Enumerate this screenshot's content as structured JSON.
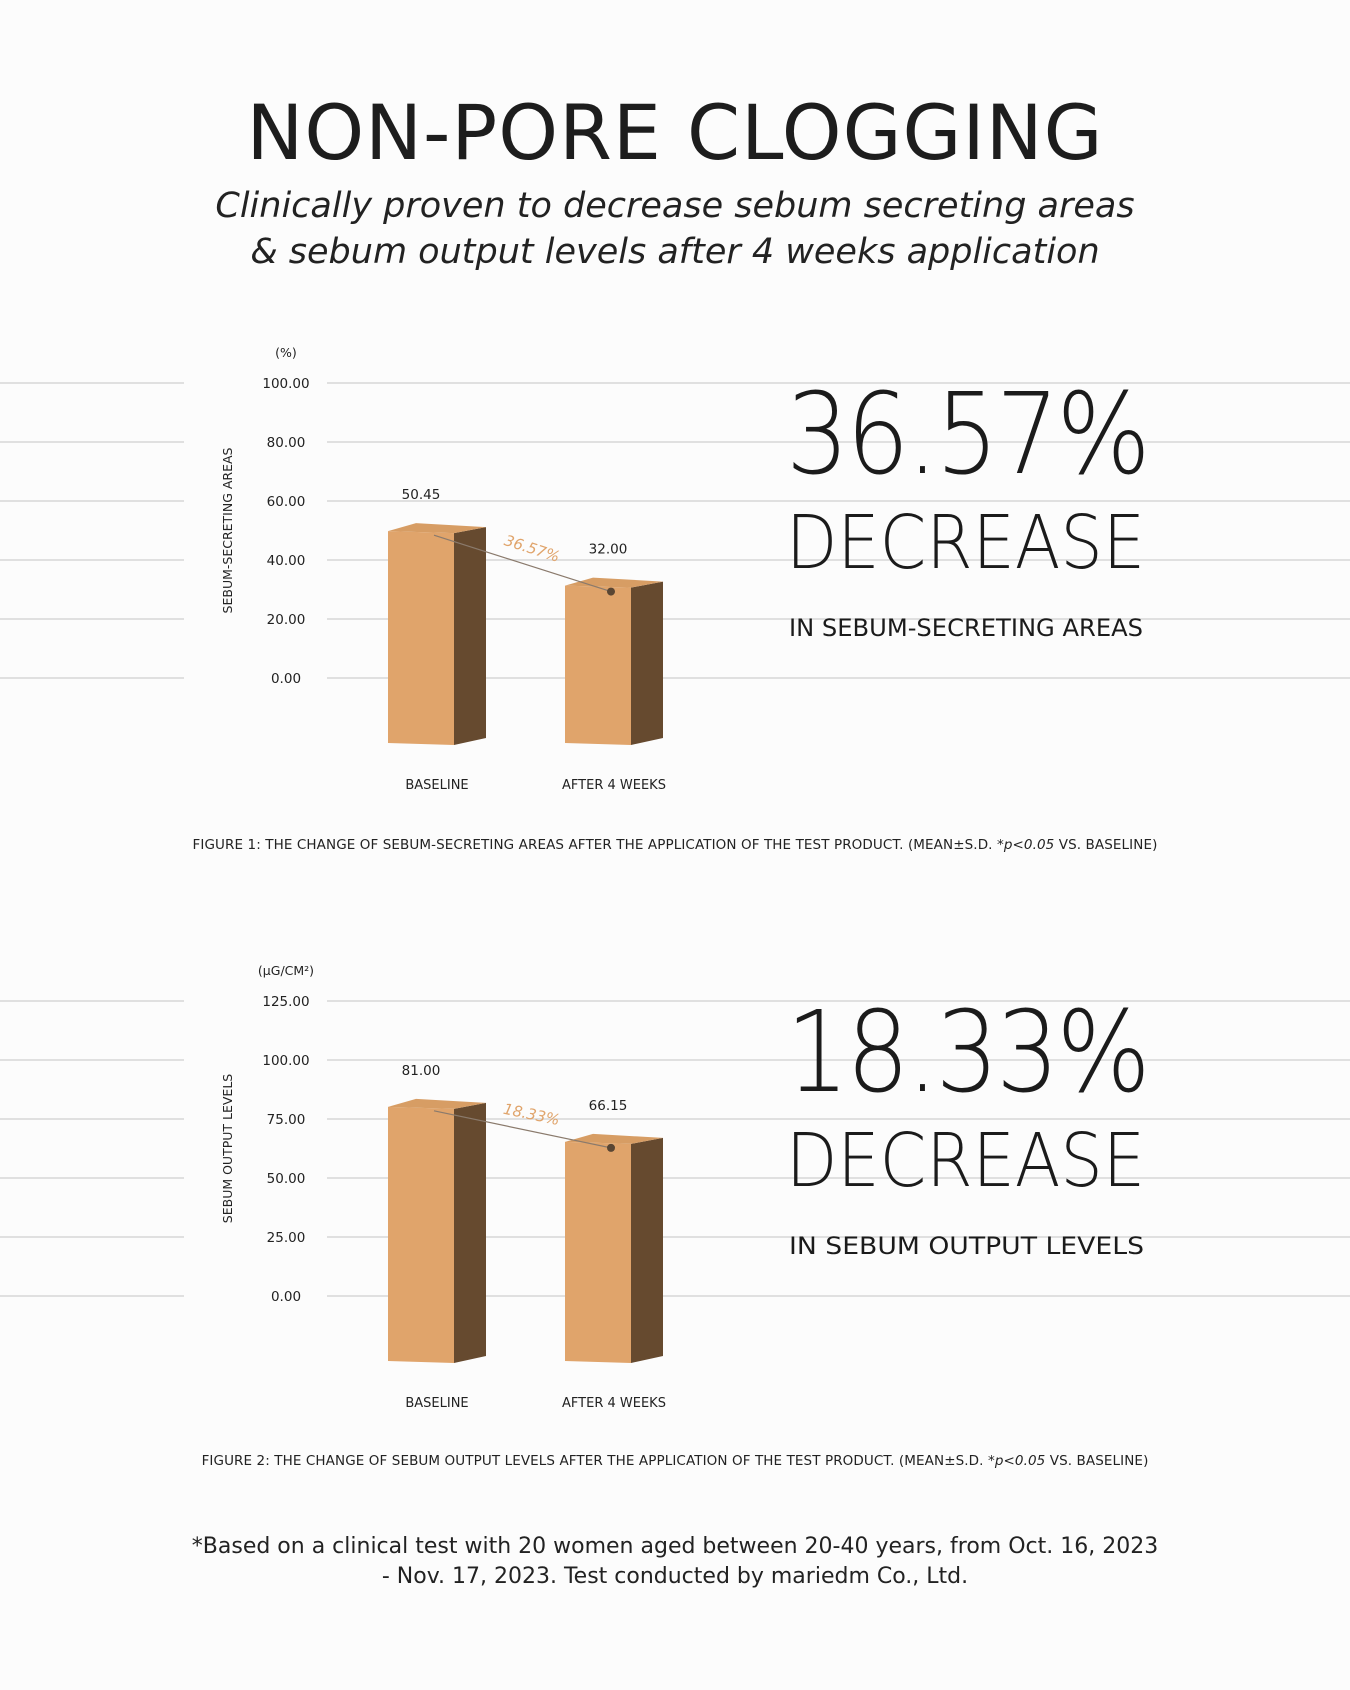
{
  "title": "NON-PORE CLOGGING",
  "subtitle_line1": "Clinically proven to decrease sebum secreting areas",
  "subtitle_line2": "& sebum output levels after 4 weeks application",
  "colors": {
    "bar_front": "#e0a46b",
    "bar_side": "#664a2f",
    "bar_top": "#d79d64",
    "trend_label": "#e0a46b",
    "gridline": "#d6d6d6"
  },
  "chart_data": [
    {
      "type": "bar",
      "unit_label": "(%)",
      "ylabel": "SEBUM-SECRETING AREAS",
      "ylim": [
        0,
        100
      ],
      "yticks": [
        "100.00",
        "80.00",
        "60.00",
        "40.00",
        "20.00",
        "0.00"
      ],
      "categories": [
        "BASELINE",
        "AFTER 4 WEEKS"
      ],
      "values": [
        50.45,
        32.0
      ],
      "value_labels": [
        "50.45",
        "32.00"
      ],
      "change_label": "36.57%",
      "highlight": {
        "percent": "36.57%",
        "word": "DECREASE",
        "detail": "IN SEBUM-SECRETING AREAS"
      },
      "caption": "FIGURE 1: THE CHANGE OF SEBUM-SECRETING AREAS AFTER THE APPLICATION OF THE TEST PRODUCT. (MEAN±S.D. *",
      "caption_p": "p<0.05",
      "caption_end": " VS. BASELINE)"
    },
    {
      "type": "bar",
      "unit_label": "(µG/CM²)",
      "ylabel": "SEBUM OUTPUT LEVELS",
      "ylim": [
        0,
        125
      ],
      "yticks": [
        "125.00",
        "100.00",
        "75.00",
        "50.00",
        "25.00",
        "0.00"
      ],
      "categories": [
        "BASELINE",
        "AFTER 4 WEEKS"
      ],
      "values": [
        81.0,
        66.15
      ],
      "value_labels": [
        "81.00",
        "66.15"
      ],
      "change_label": "18.33%",
      "highlight": {
        "percent": "18.33%",
        "word": "DECREASE",
        "detail": "IN SEBUM OUTPUT LEVELS"
      },
      "caption": "FIGURE 2: THE CHANGE OF SEBUM OUTPUT LEVELS AFTER THE APPLICATION OF THE TEST PRODUCT. (MEAN±S.D. *",
      "caption_p": "p<0.05",
      "caption_end": " VS. BASELINE)"
    }
  ],
  "footnote_line1": "*Based on a clinical test with 20 women aged between 20-40 years, from Oct. 16, 2023",
  "footnote_line2": "- Nov. 17, 2023. Test conducted by mariedm Co., Ltd."
}
